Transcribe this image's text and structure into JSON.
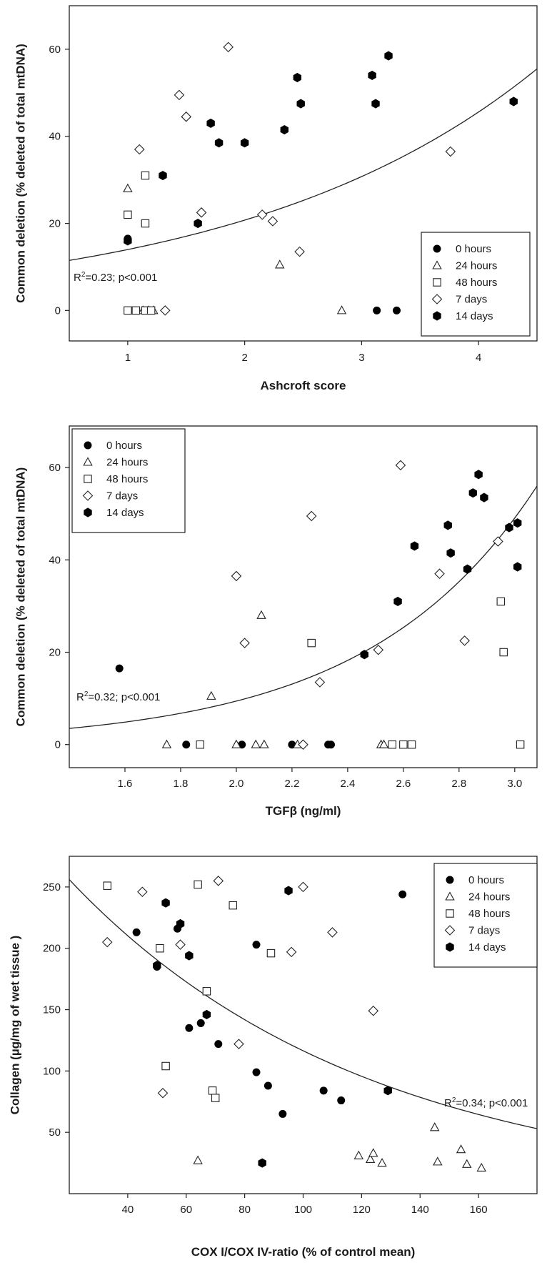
{
  "chart_data": [
    {
      "type": "scatter",
      "xlabel": "Ashcroft score",
      "ylabel": "Common deletion (% deleted of total mtDNA)",
      "xlim": [
        0.5,
        4.5
      ],
      "ylim": [
        -7,
        70
      ],
      "xticks": [
        1,
        2,
        3,
        4
      ],
      "xtick_labels": [
        "1",
        "2",
        "3",
        "4"
      ],
      "yticks": [
        0,
        20,
        40,
        60
      ],
      "ytick_labels": [
        "0",
        "20",
        "40",
        "60"
      ],
      "legend_position": "bottom-right",
      "annotation": {
        "prefix": "R",
        "sup": "2",
        "suffix": "=0.23; p<0.001",
        "position": "left"
      },
      "fit": {
        "kind": "exponential",
        "x": [
          0.5,
          4.5
        ],
        "y": [
          11.5,
          55.5
        ]
      },
      "series": [
        {
          "name": "0 hours",
          "marker": "circle",
          "points": [
            [
              1.0,
              16.5
            ],
            [
              3.13,
              0
            ],
            [
              3.3,
              0
            ]
          ]
        },
        {
          "name": "24 hours",
          "marker": "triangle",
          "points": [
            [
              1.0,
              28
            ],
            [
              1.13,
              0
            ],
            [
              1.18,
              0
            ],
            [
              1.22,
              0
            ],
            [
              2.3,
              10.5
            ],
            [
              2.83,
              0
            ]
          ]
        },
        {
          "name": "48 hours",
          "marker": "square",
          "points": [
            [
              1.0,
              22
            ],
            [
              1.0,
              0
            ],
            [
              1.07,
              0
            ],
            [
              1.15,
              31
            ],
            [
              1.15,
              20
            ],
            [
              1.15,
              0
            ],
            [
              1.2,
              0
            ]
          ]
        },
        {
          "name": "7 days",
          "marker": "diamond",
          "points": [
            [
              1.1,
              37
            ],
            [
              1.44,
              49.5
            ],
            [
              1.5,
              44.5
            ],
            [
              1.63,
              22.5
            ],
            [
              1.86,
              60.5
            ],
            [
              2.15,
              22
            ],
            [
              2.24,
              20.5
            ],
            [
              2.47,
              13.5
            ],
            [
              1.32,
              0
            ],
            [
              3.76,
              36.5
            ]
          ]
        },
        {
          "name": "14 days",
          "marker": "hexagon",
          "points": [
            [
              1.0,
              16
            ],
            [
              1.3,
              31
            ],
            [
              1.6,
              20
            ],
            [
              1.71,
              43
            ],
            [
              1.78,
              38.5
            ],
            [
              2.0,
              38.5
            ],
            [
              2.34,
              41.5
            ],
            [
              2.45,
              53.5
            ],
            [
              2.48,
              47.5
            ],
            [
              3.09,
              54
            ],
            [
              3.12,
              47.5
            ],
            [
              3.23,
              58.5
            ],
            [
              4.3,
              48
            ]
          ]
        }
      ]
    },
    {
      "type": "scatter",
      "xlabel": "TGFβ (ng/ml)",
      "ylabel": "Common deletion (% deleted of total mtDNA)",
      "xlim": [
        1.4,
        3.08
      ],
      "ylim": [
        -5,
        69
      ],
      "xticks": [
        1.6,
        1.8,
        2.0,
        2.2,
        2.4,
        2.6,
        2.8,
        3.0
      ],
      "xtick_labels": [
        "1.6",
        "1.8",
        "2.0",
        "2.2",
        "2.4",
        "2.6",
        "2.8",
        "3.0"
      ],
      "yticks": [
        0,
        20,
        40,
        60
      ],
      "ytick_labels": [
        "0",
        "20",
        "40",
        "60"
      ],
      "legend_position": "top-left",
      "annotation": {
        "prefix": "R",
        "sup": "2",
        "suffix": "=0.32; p<0.001",
        "position": "left"
      },
      "fit": {
        "kind": "exponential",
        "x": [
          1.4,
          3.08
        ],
        "y": [
          3.5,
          56
        ]
      },
      "series": [
        {
          "name": "0 hours",
          "marker": "circle",
          "points": [
            [
              1.58,
              16.5
            ],
            [
              1.82,
              0
            ],
            [
              2.02,
              0
            ],
            [
              2.2,
              0
            ],
            [
              2.33,
              0
            ],
            [
              2.34,
              0
            ]
          ]
        },
        {
          "name": "24 hours",
          "marker": "triangle",
          "points": [
            [
              1.75,
              0
            ],
            [
              1.91,
              10.5
            ],
            [
              2.0,
              0
            ],
            [
              2.07,
              0
            ],
            [
              2.09,
              28
            ],
            [
              2.1,
              0
            ],
            [
              2.22,
              0
            ],
            [
              2.52,
              0
            ],
            [
              2.53,
              0
            ]
          ]
        },
        {
          "name": "48 hours",
          "marker": "square",
          "points": [
            [
              1.87,
              0
            ],
            [
              2.27,
              22
            ],
            [
              2.56,
              0
            ],
            [
              2.6,
              0
            ],
            [
              2.63,
              0
            ],
            [
              2.95,
              31
            ],
            [
              2.96,
              20
            ],
            [
              3.02,
              0
            ]
          ]
        },
        {
          "name": "7 days",
          "marker": "diamond",
          "points": [
            [
              2.0,
              36.5
            ],
            [
              2.03,
              22
            ],
            [
              2.24,
              0
            ],
            [
              2.27,
              49.5
            ],
            [
              2.3,
              13.5
            ],
            [
              2.51,
              20.5
            ],
            [
              2.59,
              60.5
            ],
            [
              2.73,
              37
            ],
            [
              2.82,
              22.5
            ],
            [
              2.94,
              44
            ]
          ]
        },
        {
          "name": "14 days",
          "marker": "hexagon",
          "points": [
            [
              2.46,
              19.5
            ],
            [
              2.58,
              31
            ],
            [
              2.64,
              43
            ],
            [
              2.76,
              47.5
            ],
            [
              2.77,
              41.5
            ],
            [
              2.83,
              38
            ],
            [
              2.85,
              54.5
            ],
            [
              2.87,
              58.5
            ],
            [
              2.89,
              53.5
            ],
            [
              2.98,
              47
            ],
            [
              3.01,
              38.5
            ],
            [
              3.01,
              48
            ]
          ]
        }
      ]
    },
    {
      "type": "scatter",
      "xlabel": "COX I/COX IV-ratio (% of control mean)",
      "ylabel": "Collagen (µg/mg of wet tissue )",
      "xlim": [
        20,
        180
      ],
      "ylim": [
        0,
        275
      ],
      "xticks": [
        40,
        60,
        80,
        100,
        120,
        140,
        160
      ],
      "xtick_labels": [
        "40",
        "60",
        "80",
        "100",
        "120",
        "140",
        "160"
      ],
      "yticks": [
        50,
        100,
        150,
        200,
        250
      ],
      "ytick_labels": [
        "50",
        "100",
        "150",
        "200",
        "250"
      ],
      "legend_position": "top-right",
      "annotation": {
        "prefix": "R",
        "sup": "2",
        "suffix": "=0.34; p<0.001",
        "position": "right"
      },
      "fit": {
        "kind": "exponential",
        "x": [
          20,
          180
        ],
        "y": [
          256,
          53
        ]
      },
      "series": [
        {
          "name": "0 hours",
          "marker": "circle",
          "points": [
            [
              43,
              213
            ],
            [
              50,
              185
            ],
            [
              53,
              237
            ],
            [
              57,
              216
            ],
            [
              58,
              220
            ],
            [
              61,
              194
            ],
            [
              61,
              135
            ],
            [
              65,
              139
            ],
            [
              67,
              146
            ],
            [
              71,
              122
            ],
            [
              84,
              99
            ],
            [
              84,
              203
            ],
            [
              88,
              88
            ],
            [
              93,
              65
            ],
            [
              95,
              247
            ],
            [
              107,
              84
            ],
            [
              113,
              76
            ],
            [
              134,
              244
            ]
          ]
        },
        {
          "name": "24 hours",
          "marker": "triangle",
          "points": [
            [
              64,
              27
            ],
            [
              119,
              31
            ],
            [
              123,
              28
            ],
            [
              124,
              33
            ],
            [
              127,
              25
            ],
            [
              145,
              54
            ],
            [
              146,
              26
            ],
            [
              154,
              36
            ],
            [
              156,
              24
            ],
            [
              161,
              21
            ]
          ]
        },
        {
          "name": "48 hours",
          "marker": "square",
          "points": [
            [
              33,
              251
            ],
            [
              51,
              200
            ],
            [
              53,
              104
            ],
            [
              64,
              252
            ],
            [
              67,
              165
            ],
            [
              69,
              84
            ],
            [
              70,
              78
            ],
            [
              76,
              235
            ],
            [
              89,
              196
            ]
          ]
        },
        {
          "name": "7 days",
          "marker": "diamond",
          "points": [
            [
              33,
              205
            ],
            [
              45,
              246
            ],
            [
              52,
              82
            ],
            [
              58,
              203
            ],
            [
              71,
              255
            ],
            [
              78,
              122
            ],
            [
              96,
              197
            ],
            [
              100,
              250
            ],
            [
              110,
              213
            ],
            [
              124,
              149
            ]
          ]
        },
        {
          "name": "14 days",
          "marker": "hexagon",
          "points": [
            [
              50,
              186
            ],
            [
              53,
              237
            ],
            [
              58,
              220
            ],
            [
              61,
              194
            ],
            [
              67,
              146
            ],
            [
              86,
              25
            ],
            [
              95,
              247
            ],
            [
              129,
              84
            ]
          ]
        }
      ]
    }
  ]
}
